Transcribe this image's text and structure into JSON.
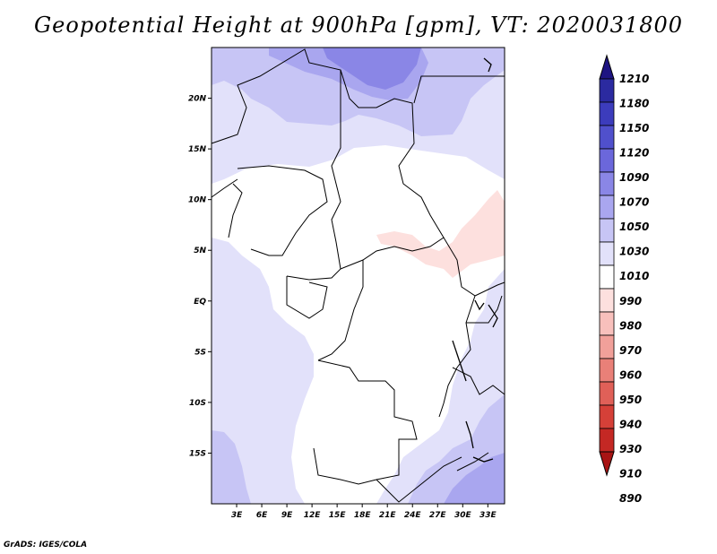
{
  "title": "Geopotential Height at 900hPa [gpm], VT: 2020031800",
  "footer": "GrADS: IGES/COLA",
  "map": {
    "lat_labels": [
      "20N",
      "15N",
      "10N",
      "5N",
      "EQ",
      "5S",
      "10S",
      "15S"
    ],
    "lat_values": [
      20,
      15,
      10,
      5,
      0,
      -5,
      -10,
      -15
    ],
    "lon_labels": [
      "3E",
      "6E",
      "9E",
      "12E",
      "15E",
      "18E",
      "21E",
      "24E",
      "27E",
      "30E",
      "33E"
    ],
    "lon_values": [
      3,
      6,
      9,
      12,
      15,
      18,
      21,
      24,
      27,
      30,
      33
    ],
    "lon_range": [
      0,
      35
    ],
    "lat_range": [
      -20,
      25
    ]
  },
  "colorbar": {
    "levels": [
      "1210",
      "1180",
      "1150",
      "1120",
      "1090",
      "1070",
      "1050",
      "1030",
      "1010",
      "990",
      "980",
      "970",
      "960",
      "950",
      "940",
      "930",
      "910",
      "890"
    ],
    "colors": [
      "#1e1482",
      "#2b2aa0",
      "#3c3cbc",
      "#5050cc",
      "#6b67db",
      "#8a86e6",
      "#a9a6ef",
      "#c7c5f5",
      "#e2e1fa",
      "#ffffff",
      "#fde0de",
      "#f8c0bc",
      "#f1a09a",
      "#e98078",
      "#e06058",
      "#d54038",
      "#c42824",
      "#a81414"
    ]
  },
  "colors": {
    "c1010": "#e2e1fa",
    "c1030": "#c7c5f5",
    "c1050": "#a9a6ef",
    "c1070": "#8a86e6",
    "c990": "#ffffff",
    "c980": "#fde0de"
  }
}
